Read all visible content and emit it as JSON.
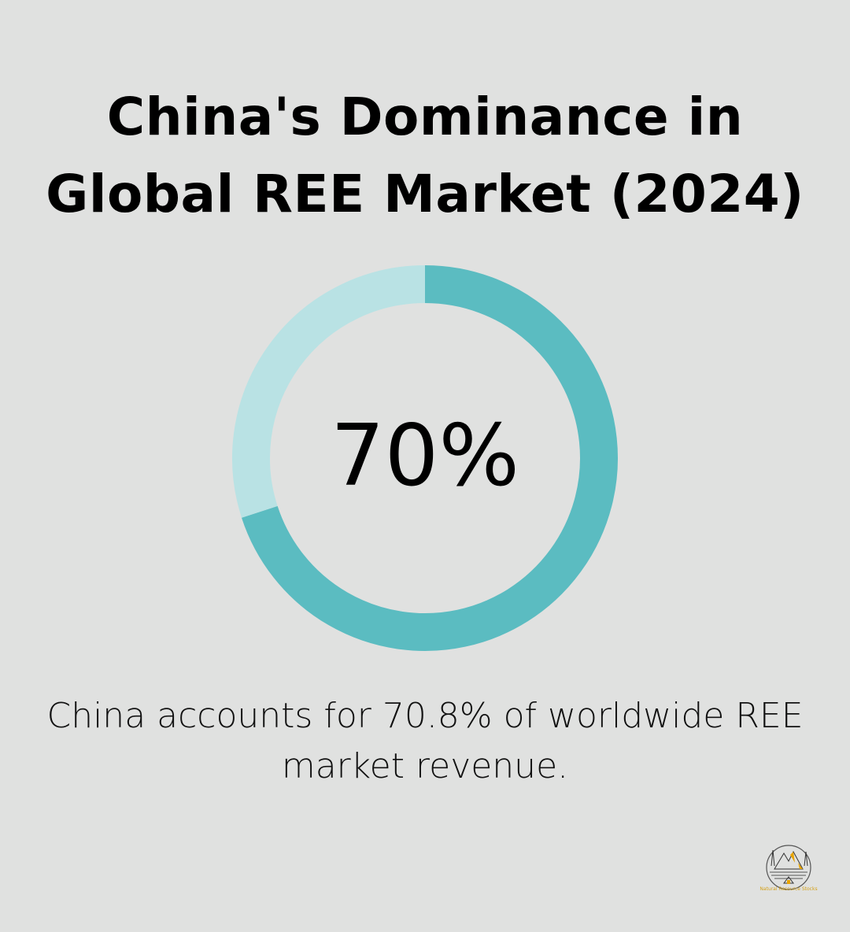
{
  "title_line1": "China's Dominance in",
  "title_line2": "Global REE Market (2024)",
  "chart_data": {
    "type": "pie",
    "style": "donut",
    "values": [
      70,
      30
    ],
    "colors": [
      "#5bbcc1",
      "#b9e2e4"
    ],
    "center_label": "70%"
  },
  "description": "China accounts for 70.8% of worldwide REE market revenue.",
  "logo_text": "Natural Resource Stocks"
}
